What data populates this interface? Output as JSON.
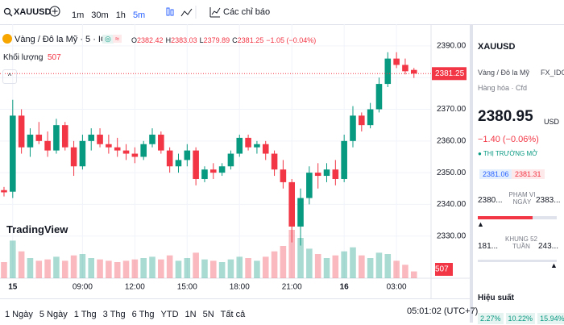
{
  "toolbar": {
    "symbol": "XAUUSD",
    "intervals": [
      "1m",
      "30m",
      "1h",
      "5m"
    ],
    "indicators": "Các chỉ báo"
  },
  "legend": {
    "name": "Vàng / Đô la Mỹ · 5 · ICE",
    "ohlc_labels": [
      "O",
      "H",
      "L",
      "C"
    ],
    "change": "−1.05 (−0.04%)",
    "volume_label": "Khối lượng"
  },
  "logo": "TradingView",
  "chart_data": {
    "type": "candlestick",
    "open": [
      2344.5,
      2344,
      2368,
      2358,
      2362,
      2360,
      2357,
      2365,
      2358,
      2352,
      2360,
      2362,
      2359,
      2358,
      2357,
      2356,
      2355,
      2359,
      2362,
      2357,
      2352,
      2354,
      2357,
      2348,
      2351,
      2350,
      2352,
      2356,
      2361,
      2358,
      2359,
      2356,
      2351,
      2347,
      2333,
      2342,
      2350,
      2349,
      2351,
      2348,
      2360,
      2368,
      2365,
      2370,
      2378,
      2386,
      2384,
      2382.42
    ],
    "high": [
      2345.5,
      2373,
      2370,
      2364,
      2366,
      2363,
      2367,
      2366,
      2360,
      2362,
      2364,
      2364,
      2362,
      2361,
      2359,
      2358,
      2360,
      2364,
      2363,
      2358,
      2356,
      2359,
      2358,
      2352,
      2353,
      2353,
      2357,
      2362,
      2362,
      2360,
      2360,
      2357,
      2354,
      2348,
      2345,
      2352,
      2353,
      2353,
      2354,
      2362,
      2371,
      2369,
      2372,
      2380,
      2388,
      2388,
      2386,
      2383.03
    ],
    "low": [
      2342.5,
      2342,
      2356,
      2355,
      2359,
      2355,
      2356,
      2357,
      2349,
      2351,
      2357,
      2358,
      2356,
      2355,
      2354,
      2353,
      2354,
      2358,
      2356,
      2350,
      2350,
      2352,
      2346,
      2347,
      2348,
      2349,
      2351,
      2355,
      2357,
      2356,
      2354,
      2349,
      2345,
      2328,
      2327,
      2340,
      2345,
      2347,
      2346,
      2347,
      2358,
      2363,
      2364,
      2369,
      2377,
      2383,
      2381,
      2379.89
    ],
    "close": [
      2343.8,
      2368,
      2358,
      2362,
      2360,
      2357,
      2365,
      2358,
      2352,
      2360,
      2362,
      2359,
      2358,
      2357,
      2356,
      2355,
      2359,
      2362,
      2357,
      2352,
      2354,
      2357,
      2348,
      2351,
      2350,
      2352,
      2356,
      2361,
      2358,
      2359,
      2356,
      2351,
      2347,
      2333,
      2342,
      2350,
      2349,
      2351,
      2348,
      2360,
      2368,
      2365,
      2370,
      2378,
      2386,
      2384,
      2382,
      2381.25
    ],
    "volume": [
      1200,
      2800,
      2000,
      1500,
      1300,
      1400,
      1600,
      1300,
      1700,
      1800,
      1500,
      1400,
      1300,
      1200,
      1300,
      1400,
      1500,
      1600,
      1400,
      1700,
      1300,
      1500,
      1900,
      1400,
      1300,
      1200,
      1400,
      1600,
      1500,
      1300,
      1600,
      2000,
      2400,
      3600,
      3000,
      2200,
      1800,
      1500,
      1700,
      2000,
      2300,
      1700,
      1500,
      1900,
      1800,
      1300,
      1000,
      507
    ],
    "up_color": "#089981",
    "down_color": "#f23645",
    "xlim": [
      -0.46,
      48.5
    ],
    "xticks": [
      {
        "value": 1,
        "label": "15"
      },
      {
        "value": 9,
        "label": "09:00"
      },
      {
        "value": 15,
        "label": "12:00"
      },
      {
        "value": 21,
        "label": "15:00"
      },
      {
        "value": 27,
        "label": "18:00"
      },
      {
        "value": 33,
        "label": "21:00"
      },
      {
        "value": 39,
        "label": "16"
      },
      {
        "value": 45,
        "label": "03:00"
      }
    ],
    "ylim": [
      2316.7,
      2394.3
    ],
    "yticks": [
      {
        "value": 2330,
        "label": "2330.00"
      },
      {
        "value": 2340,
        "label": "2340.00"
      },
      {
        "value": 2350,
        "label": "2350.00"
      },
      {
        "value": 2360,
        "label": "2360.00"
      },
      {
        "value": 2370,
        "label": "2370.00"
      },
      {
        "value": 2380,
        "label": "2380.00"
      },
      {
        "value": 2390,
        "label": "2390.00"
      }
    ],
    "volume_ylim": [
      0,
      6000
    ],
    "grid": true
  },
  "sidebar": {
    "symbol": "XAUUSD",
    "name": "Vàng / Đô la Mỹ",
    "source": "FX_IDC",
    "category": "Hàng hóa · Cfd",
    "price": "2380.95",
    "currency": "USD",
    "change": "−1.40 (−0.06%)",
    "status": "THỊ TRƯỜNG MỞ",
    "bid": "2381.06",
    "ask": "2381.31",
    "day_low": "2380...",
    "day_range": "PHẠM VI NGÀY",
    "day_high": "2383...",
    "year_low": "181...",
    "year_range": "KHUNG 52 TUẦN",
    "year_high": "243...",
    "performance": "Hiệu suất",
    "perf": [
      "2.27%",
      "10.22%",
      "15.94%"
    ]
  },
  "bottom_bar": {
    "ranges": [
      "1 Ngày",
      "5 Ngày",
      "1 Thg",
      "3 Thg",
      "6 Thg",
      "YTD",
      "1N",
      "5N",
      "Tất cả"
    ],
    "clock": "05:01:02 (UTC+7)"
  }
}
